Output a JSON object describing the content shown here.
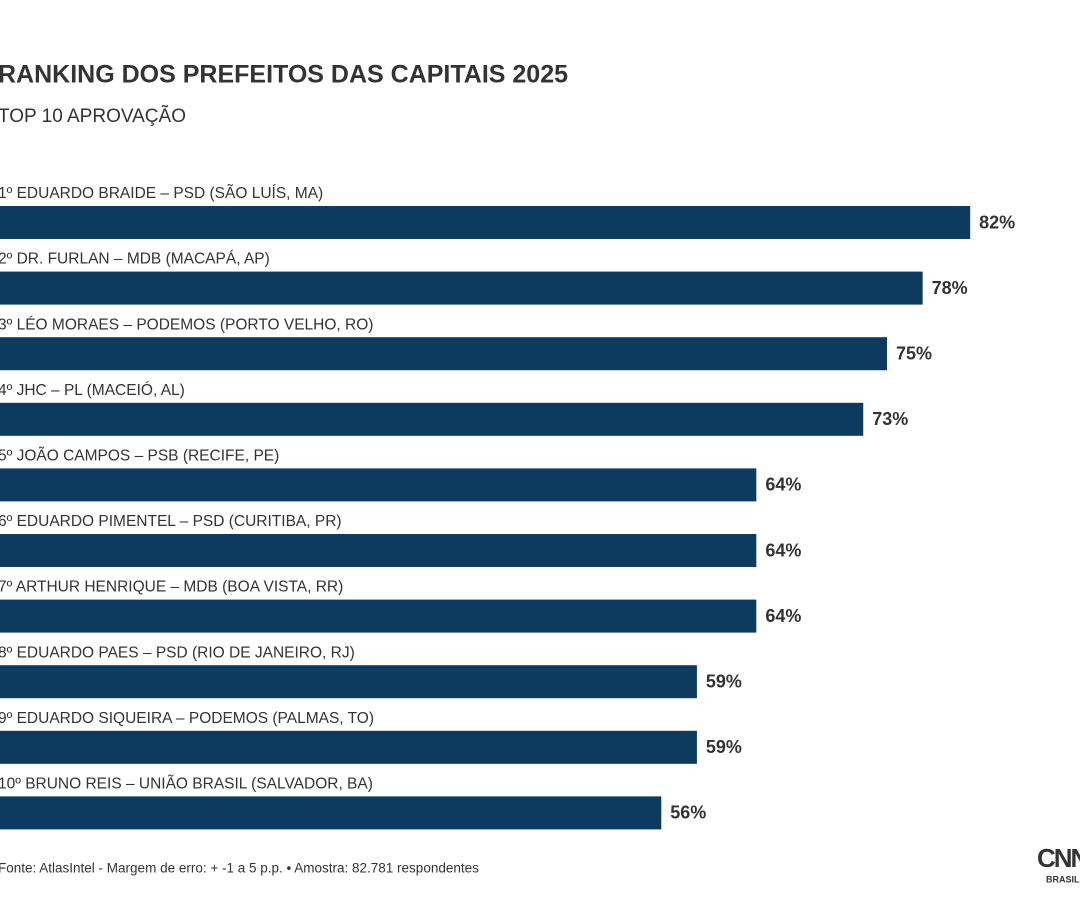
{
  "chart_data": {
    "type": "bar",
    "orientation": "horizontal",
    "title": "RANKING DOS PREFEITOS DAS CAPITAIS 2025",
    "subtitle": "TOP 10 APROVAÇÃO",
    "categories": [
      "1º EDUARDO BRAIDE – PSD (SÃO LUÍS, MA)",
      "2º DR. FURLAN – MDB (MACAPÁ, AP)",
      "3º LÉO MORAES – PODEMOS (PORTO VELHO, RO)",
      "4º JHC – PL (MACEIÓ, AL)",
      "5º JOÃO CAMPOS – PSB (RECIFE, PE)",
      "6º EDUARDO PIMENTEL – PSD (CURITIBA, PR)",
      "7º ARTHUR HENRIQUE – MDB (BOA VISTA, RR)",
      "8º EDUARDO PAES – PSD (RIO DE JANEIRO, RJ)",
      "9º EDUARDO SIQUEIRA – PODEMOS (PALMAS, TO)",
      "10º BRUNO REIS – UNIÃO BRASIL (SALVADOR, BA)"
    ],
    "values": [
      82,
      78,
      75,
      73,
      64,
      64,
      64,
      59,
      59,
      56
    ],
    "value_labels": [
      "82%",
      "78%",
      "75%",
      "73%",
      "64%",
      "64%",
      "64%",
      "59%",
      "59%",
      "56%"
    ],
    "color": "#0d3a5f",
    "source": "Fonte: AtlasIntel - Margem de erro: + -1 a 5 p.p. • Amostra: 82.781 respondentes",
    "logo": "CNN",
    "logo_sub": "BRASIL"
  }
}
